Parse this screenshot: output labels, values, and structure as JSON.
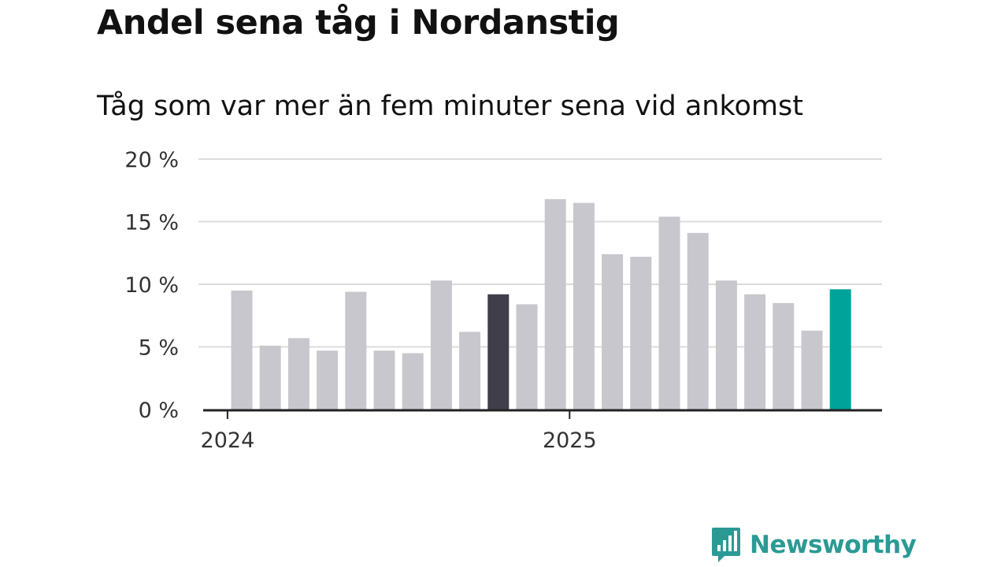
{
  "title": "Andel sena tåg i Nordanstig",
  "subtitle": "Tåg som var mer än fem minuter sena vid ankomst",
  "brand": "Newsworthy",
  "colors": {
    "bar_default": "#c8c7cd",
    "bar_highlight_dark": "#403e4a",
    "bar_highlight_latest": "#00a39a",
    "gridline": "#dcdcdc",
    "axis": "#222222",
    "brand": "#2b9a95"
  },
  "chart_data": {
    "type": "bar",
    "title": "Andel sena tåg i Nordanstig",
    "subtitle": "Tåg som var mer än fem minuter sena vid ankomst",
    "ylim": [
      0,
      20
    ],
    "yticks": [
      {
        "value": 0,
        "label": "0 %"
      },
      {
        "value": 5,
        "label": "5 %"
      },
      {
        "value": 10,
        "label": "10 %"
      },
      {
        "value": 15,
        "label": "15 %"
      },
      {
        "value": 20,
        "label": "20 %"
      }
    ],
    "xticks": [
      {
        "index": -0.5,
        "label": "2024"
      },
      {
        "index": 11.5,
        "label": "2025"
      }
    ],
    "grid": true,
    "values": [
      9.5,
      5.1,
      5.7,
      4.7,
      9.4,
      4.7,
      4.5,
      10.3,
      6.2,
      9.2,
      8.4,
      16.8,
      16.5,
      12.4,
      12.2,
      15.4,
      14.1,
      10.3,
      9.2,
      8.5,
      6.3,
      9.6
    ],
    "highlights": {
      "9": "dark",
      "21": "latest"
    }
  }
}
